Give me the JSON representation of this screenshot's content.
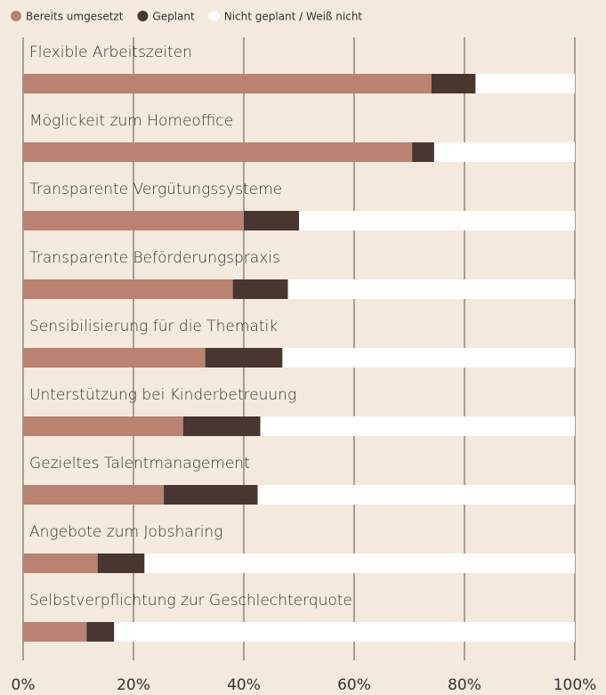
{
  "chart_data": {
    "type": "stacked_bar_horizontal",
    "categories": [
      "Flexible Arbeitszeiten",
      "Möglickeit zum Homeoffice",
      "Transparente Vergütungssysteme",
      "Transparente Beförderungspraxis",
      "Sensibilisierung für die Thematik",
      "Unterstützung bei Kinderbetreuung",
      "Gezieltes Talentmanagement",
      "Angebote zum Jobsharing",
      "Selbstverpflichtung zur Geschlechterquote"
    ],
    "series": [
      {
        "name": "Bereits umgesetzt",
        "color": "#b98271",
        "values": [
          74,
          70.5,
          40,
          38,
          33,
          29,
          25.5,
          13.5,
          11.5
        ]
      },
      {
        "name": "Geplant",
        "color": "#4a3631",
        "values": [
          8,
          4,
          10,
          10,
          14,
          14,
          17,
          8.5,
          5
        ]
      },
      {
        "name": "Nicht geplant / Weiß nicht",
        "color": "#ffffff",
        "values": [
          18,
          25.5,
          50,
          52,
          53,
          57,
          57.5,
          78,
          83.5
        ]
      }
    ],
    "xlim": [
      0,
      100
    ],
    "xticks": [
      {
        "value": 0,
        "label": "0%"
      },
      {
        "value": 20,
        "label": "20%"
      },
      {
        "value": 40,
        "label": "40%"
      },
      {
        "value": 60,
        "label": "60%"
      },
      {
        "value": 80,
        "label": "80%"
      },
      {
        "value": 100,
        "label": "100%"
      }
    ],
    "grid": true
  }
}
